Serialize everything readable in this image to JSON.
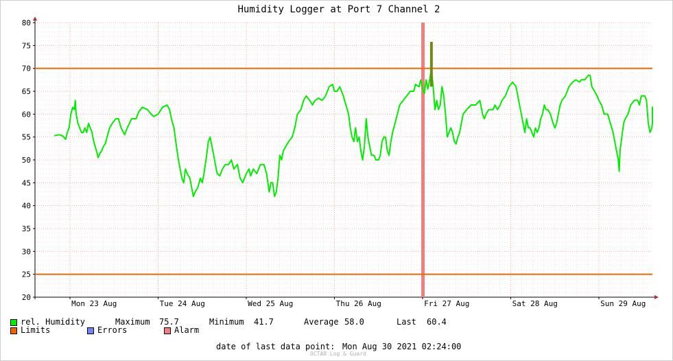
{
  "chart_data": {
    "type": "line",
    "title": "Humidity Logger at Port 7 Channel 2",
    "ylim": [
      20,
      80
    ],
    "yticks": [
      20,
      25,
      30,
      35,
      40,
      45,
      50,
      55,
      60,
      65,
      70,
      75,
      80
    ],
    "x_tick_labels": [
      "Mon 23 Aug",
      "Tue 24 Aug",
      "Wed 25 Aug",
      "Thu 26 Aug",
      "Fri 27 Aug",
      "Sat 28 Aug",
      "Sun 29 Aug"
    ],
    "limits": {
      "upper": 70,
      "lower": 25
    },
    "alarm_day": 4.0,
    "grid": true,
    "colors": {
      "series": "#00ee00",
      "limits": "#ee6600",
      "errors": "#6f86f2",
      "alarm": "#f27f7f",
      "alarm_bar": "#f08080",
      "spike": "#6f8a10"
    },
    "series": [
      {
        "name": "rel. Humidity",
        "x_unit": "days since Mon 23 Aug 00:00",
        "points": [
          [
            -0.18,
            55.3
          ],
          [
            -0.12,
            55.5
          ],
          [
            -0.08,
            55.2
          ],
          [
            -0.05,
            54.5
          ],
          [
            -0.03,
            56
          ],
          [
            -0.01,
            57
          ],
          [
            0.01,
            60
          ],
          [
            0.03,
            61.5
          ],
          [
            0.05,
            61
          ],
          [
            0.06,
            63
          ],
          [
            0.07,
            60
          ],
          [
            0.09,
            58
          ],
          [
            0.11,
            57
          ],
          [
            0.13,
            56
          ],
          [
            0.15,
            56
          ],
          [
            0.17,
            57
          ],
          [
            0.19,
            56
          ],
          [
            0.21,
            58
          ],
          [
            0.23,
            57
          ],
          [
            0.25,
            56
          ],
          [
            0.27,
            54
          ],
          [
            0.3,
            52
          ],
          [
            0.32,
            50.5
          ],
          [
            0.34,
            51.5
          ],
          [
            0.36,
            52
          ],
          [
            0.38,
            53
          ],
          [
            0.4,
            53.5
          ],
          [
            0.42,
            55
          ],
          [
            0.45,
            57
          ],
          [
            0.48,
            58
          ],
          [
            0.52,
            59
          ],
          [
            0.55,
            59
          ],
          [
            0.58,
            57
          ],
          [
            0.62,
            55.5
          ],
          [
            0.65,
            57
          ],
          [
            0.7,
            59
          ],
          [
            0.75,
            59
          ],
          [
            0.78,
            60.5
          ],
          [
            0.82,
            61.5
          ],
          [
            0.88,
            61
          ],
          [
            0.92,
            60
          ],
          [
            0.95,
            59.5
          ],
          [
            1.0,
            60
          ],
          [
            1.05,
            61.5
          ],
          [
            1.1,
            62
          ],
          [
            1.13,
            61
          ],
          [
            1.15,
            59
          ],
          [
            1.18,
            57
          ],
          [
            1.2,
            54
          ],
          [
            1.23,
            50
          ],
          [
            1.25,
            48
          ],
          [
            1.27,
            46
          ],
          [
            1.29,
            45
          ],
          [
            1.31,
            48
          ],
          [
            1.33,
            47
          ],
          [
            1.36,
            46
          ],
          [
            1.38,
            44
          ],
          [
            1.4,
            42
          ],
          [
            1.42,
            43
          ],
          [
            1.45,
            44
          ],
          [
            1.48,
            46
          ],
          [
            1.5,
            45
          ],
          [
            1.52,
            47
          ],
          [
            1.55,
            51
          ],
          [
            1.57,
            54
          ],
          [
            1.59,
            55
          ],
          [
            1.61,
            53
          ],
          [
            1.63,
            51
          ],
          [
            1.65,
            49
          ],
          [
            1.67,
            47
          ],
          [
            1.7,
            46.5
          ],
          [
            1.73,
            48
          ],
          [
            1.76,
            49
          ],
          [
            1.8,
            49
          ],
          [
            1.83,
            50
          ],
          [
            1.86,
            48
          ],
          [
            1.9,
            49
          ],
          [
            1.93,
            46
          ],
          [
            1.96,
            45
          ],
          [
            2.0,
            47
          ],
          [
            2.03,
            48
          ],
          [
            2.05,
            46.5
          ],
          [
            2.08,
            48
          ],
          [
            2.12,
            47
          ],
          [
            2.16,
            49
          ],
          [
            2.2,
            49
          ],
          [
            2.23,
            47
          ],
          [
            2.26,
            43
          ],
          [
            2.28,
            45
          ],
          [
            2.3,
            45
          ],
          [
            2.32,
            42
          ],
          [
            2.34,
            43
          ],
          [
            2.36,
            46
          ],
          [
            2.38,
            51
          ],
          [
            2.4,
            50
          ],
          [
            2.42,
            52
          ],
          [
            2.45,
            53
          ],
          [
            2.48,
            54
          ],
          [
            2.52,
            55
          ],
          [
            2.55,
            57
          ],
          [
            2.58,
            60
          ],
          [
            2.62,
            61
          ],
          [
            2.65,
            63
          ],
          [
            2.68,
            64
          ],
          [
            2.72,
            63
          ],
          [
            2.75,
            62
          ],
          [
            2.78,
            63
          ],
          [
            2.82,
            63.5
          ],
          [
            2.86,
            63
          ],
          [
            2.9,
            64
          ],
          [
            2.94,
            66
          ],
          [
            2.98,
            66.5
          ],
          [
            3.0,
            65
          ],
          [
            3.03,
            65
          ],
          [
            3.06,
            66
          ],
          [
            3.1,
            64
          ],
          [
            3.13,
            62
          ],
          [
            3.16,
            60
          ],
          [
            3.18,
            57
          ],
          [
            3.2,
            55
          ],
          [
            3.22,
            54
          ],
          [
            3.24,
            57
          ],
          [
            3.26,
            54
          ],
          [
            3.28,
            55
          ],
          [
            3.3,
            52
          ],
          [
            3.32,
            50
          ],
          [
            3.34,
            53
          ],
          [
            3.36,
            59
          ],
          [
            3.38,
            55
          ],
          [
            3.4,
            53
          ],
          [
            3.42,
            51
          ],
          [
            3.45,
            51
          ],
          [
            3.47,
            50
          ],
          [
            3.5,
            50
          ],
          [
            3.52,
            51
          ],
          [
            3.54,
            54
          ],
          [
            3.56,
            55
          ],
          [
            3.58,
            55
          ],
          [
            3.6,
            52
          ],
          [
            3.62,
            51
          ],
          [
            3.64,
            54
          ],
          [
            3.66,
            56
          ],
          [
            3.7,
            59
          ],
          [
            3.74,
            62
          ],
          [
            3.78,
            63
          ],
          [
            3.82,
            64
          ],
          [
            3.86,
            65
          ],
          [
            3.9,
            65
          ],
          [
            3.92,
            66.5
          ],
          [
            3.96,
            66
          ],
          [
            3.98,
            67.5
          ],
          [
            4.0,
            65.5
          ],
          [
            4.02,
            64.5
          ],
          [
            4.04,
            67.5
          ],
          [
            4.06,
            65.5
          ],
          [
            4.08,
            67.5
          ],
          [
            4.1,
            70
          ],
          [
            4.12,
            66
          ],
          [
            4.14,
            61
          ],
          [
            4.16,
            63
          ],
          [
            4.18,
            61
          ],
          [
            4.2,
            62
          ],
          [
            4.22,
            66
          ],
          [
            4.24,
            64
          ],
          [
            4.26,
            60
          ],
          [
            4.28,
            55
          ],
          [
            4.3,
            56
          ],
          [
            4.32,
            57
          ],
          [
            4.34,
            56
          ],
          [
            4.36,
            54
          ],
          [
            4.38,
            53.5
          ],
          [
            4.4,
            55
          ],
          [
            4.42,
            56
          ],
          [
            4.44,
            58
          ],
          [
            4.46,
            60
          ],
          [
            4.5,
            61
          ],
          [
            4.55,
            62
          ],
          [
            4.6,
            62
          ],
          [
            4.65,
            63
          ],
          [
            4.68,
            60
          ],
          [
            4.7,
            59
          ],
          [
            4.72,
            60
          ],
          [
            4.75,
            61
          ],
          [
            4.8,
            61
          ],
          [
            4.82,
            62
          ],
          [
            4.85,
            61
          ],
          [
            4.88,
            62
          ],
          [
            4.9,
            63
          ],
          [
            4.94,
            64
          ],
          [
            4.98,
            66
          ],
          [
            5.02,
            67
          ],
          [
            5.06,
            66
          ],
          [
            5.08,
            64
          ],
          [
            5.1,
            62
          ],
          [
            5.12,
            60
          ],
          [
            5.14,
            58
          ],
          [
            5.16,
            56
          ],
          [
            5.18,
            59
          ],
          [
            5.2,
            57
          ],
          [
            5.22,
            57
          ],
          [
            5.24,
            56
          ],
          [
            5.26,
            55
          ],
          [
            5.28,
            57
          ],
          [
            5.3,
            56
          ],
          [
            5.32,
            57
          ],
          [
            5.34,
            59
          ],
          [
            5.36,
            60
          ],
          [
            5.38,
            62
          ],
          [
            5.4,
            61
          ],
          [
            5.42,
            61
          ],
          [
            5.45,
            60
          ],
          [
            5.48,
            58
          ],
          [
            5.5,
            57
          ],
          [
            5.52,
            58
          ],
          [
            5.54,
            60
          ],
          [
            5.56,
            62
          ],
          [
            5.58,
            63
          ],
          [
            5.62,
            64
          ],
          [
            5.66,
            66
          ],
          [
            5.7,
            67
          ],
          [
            5.74,
            67.5
          ],
          [
            5.78,
            67
          ],
          [
            5.8,
            67.5
          ],
          [
            5.84,
            67.5
          ],
          [
            5.88,
            68.5
          ],
          [
            5.9,
            68.5
          ],
          [
            5.92,
            66
          ],
          [
            5.95,
            65
          ],
          [
            5.98,
            64
          ],
          [
            6.0,
            63
          ],
          [
            6.03,
            62
          ],
          [
            6.06,
            60
          ],
          [
            6.1,
            60
          ],
          [
            6.13,
            58
          ],
          [
            6.16,
            56
          ],
          [
            6.18,
            54
          ],
          [
            6.2,
            52
          ],
          [
            6.22,
            50
          ],
          [
            6.23,
            47.5
          ],
          [
            6.24,
            52
          ],
          [
            6.26,
            55
          ],
          [
            6.28,
            58
          ],
          [
            6.3,
            59
          ],
          [
            6.33,
            60
          ],
          [
            6.36,
            62
          ],
          [
            6.4,
            63
          ],
          [
            6.44,
            63
          ],
          [
            6.46,
            62
          ],
          [
            6.48,
            64
          ],
          [
            6.52,
            64
          ],
          [
            6.54,
            63
          ],
          [
            6.56,
            58
          ],
          [
            6.58,
            56
          ],
          [
            6.6,
            57
          ],
          [
            6.62,
            58
          ],
          [
            6.64,
            59
          ],
          [
            6.66,
            61
          ],
          [
            6.68,
            61.5
          ],
          [
            6.7,
            60.4
          ]
        ]
      }
    ],
    "alarm_spike": [
      [
        4.09,
        66
      ],
      [
        4.09,
        75.7
      ],
      [
        4.11,
        75.7
      ],
      [
        4.11,
        66
      ]
    ]
  },
  "legend": {
    "series_label": "rel. Humidity",
    "max_label": "Maximum",
    "max_value": "75.7",
    "min_label": "Minimum",
    "min_value": "41.7",
    "avg_label": "Average",
    "avg_value": "58.0",
    "last_label": "Last",
    "last_value": "60.4",
    "limits_label": "Limits",
    "errors_label": "Errors",
    "alarm_label": "Alarm"
  },
  "footer": {
    "date_label": "date of last data point:",
    "date_value": "Mon Aug 30 2021 02:24:00",
    "credit": "OCTA8 Log & Guard"
  }
}
